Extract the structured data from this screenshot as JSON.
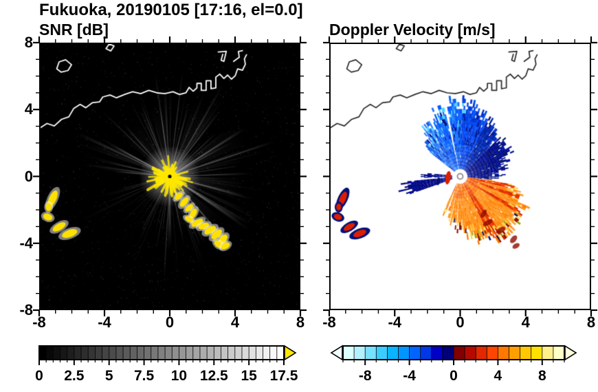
{
  "header": {
    "title": "Fukuoka, 20190105 [17:16, el=0.0]"
  },
  "panels": {
    "snr": {
      "title": "SNR [dB]"
    },
    "doppler": {
      "title": "Doppler Velocity [m/s]"
    }
  },
  "axes": {
    "x": [
      -8,
      -4,
      0,
      4,
      8
    ],
    "y": [
      8,
      4,
      0,
      -4,
      -8
    ]
  },
  "colorbar_labels": {
    "snr": [
      0,
      2.5,
      5,
      7.5,
      10,
      12.5,
      15,
      17.5
    ],
    "doppler": [
      -8,
      -4,
      0,
      4,
      8
    ]
  },
  "coastline": {
    "mainland": [
      [
        -8,
        2.95
      ],
      [
        -7.6,
        3.2
      ],
      [
        -7.15,
        3.05
      ],
      [
        -6.7,
        3.45
      ],
      [
        -6.25,
        3.6
      ],
      [
        -5.95,
        4.1
      ],
      [
        -5.55,
        4.35
      ],
      [
        -5.2,
        4.15
      ],
      [
        -4.8,
        4.45
      ],
      [
        -4.35,
        4.5
      ],
      [
        -4.15,
        4.8
      ],
      [
        -3.7,
        4.92
      ],
      [
        -3.3,
        4.75
      ],
      [
        -2.8,
        4.95
      ],
      [
        -2.3,
        5.12
      ],
      [
        -1.8,
        5.0
      ],
      [
        -1.3,
        5.2
      ],
      [
        -0.8,
        5.05
      ],
      [
        -0.3,
        5.0
      ],
      [
        0.2,
        5.12
      ],
      [
        0.6,
        4.95
      ],
      [
        1.0,
        5.05
      ],
      [
        1.2,
        5.38
      ],
      [
        1.45,
        5.15
      ],
      [
        1.68,
        5.35
      ],
      [
        1.68,
        5.62
      ],
      [
        1.95,
        5.62
      ],
      [
        1.95,
        5.2
      ],
      [
        2.25,
        5.2
      ],
      [
        2.25,
        5.78
      ],
      [
        2.55,
        5.78
      ],
      [
        2.55,
        5.3
      ],
      [
        2.85,
        5.35
      ],
      [
        2.85,
        6.0
      ],
      [
        3.1,
        6.18
      ],
      [
        3.35,
        5.92
      ],
      [
        3.58,
        6.12
      ],
      [
        3.82,
        5.88
      ],
      [
        4.05,
        6.08
      ],
      [
        4.2,
        6.5
      ],
      [
        4.5,
        6.42
      ],
      [
        4.68,
        6.78
      ],
      [
        4.62,
        7.1
      ],
      [
        4.75,
        7.35
      ]
    ],
    "islands": [
      {
        "closed": true,
        "pts": [
          [
            -7.0,
            6.5
          ],
          [
            -6.85,
            6.92
          ],
          [
            -6.45,
            7.05
          ],
          [
            -6.08,
            6.75
          ],
          [
            -6.3,
            6.4
          ],
          [
            -6.72,
            6.3
          ]
        ]
      },
      {
        "closed": true,
        "pts": [
          [
            -3.95,
            7.72
          ],
          [
            -3.75,
            8.0
          ],
          [
            -3.45,
            7.88
          ],
          [
            -3.65,
            7.58
          ]
        ]
      },
      {
        "closed": false,
        "pts": [
          [
            3.0,
            7.52
          ],
          [
            3.5,
            7.56
          ],
          [
            3.35,
            6.95
          ],
          [
            3.18,
            7.02
          ],
          [
            3.28,
            7.38
          ]
        ]
      },
      {
        "closed": false,
        "pts": [
          [
            3.95,
            6.95
          ],
          [
            4.3,
            7.2
          ],
          [
            4.25,
            7.55
          ],
          [
            4.5,
            7.6
          ]
        ]
      }
    ]
  },
  "chart_data": [
    {
      "type": "heatmap",
      "title": "SNR [dB]",
      "xlim": [
        -8,
        8
      ],
      "ylim": [
        -8,
        8
      ],
      "xticks": [
        -8,
        -4,
        0,
        4,
        8
      ],
      "yticks": [
        -8,
        -4,
        0,
        4,
        8
      ],
      "minor_tick_step": 1,
      "background": "#000000",
      "radar_origin": [
        0,
        0
      ],
      "colorbar": {
        "min": 0,
        "max": 17.5,
        "ticks": [
          0,
          2.5,
          5,
          7.5,
          10,
          12.5,
          15,
          17.5
        ],
        "minor_tick_step": 0.5,
        "colormap": "grayscale-black-to-white",
        "over_arrow_color": "#ffe600"
      },
      "description": "PPI radar SNR: white radial beams from radar at origin on black background, saturated yellow echo at center, yellow ground-clutter arc to the southeast and detached yellow patches to the west; white coastline of Hakata Bay on top",
      "clutter": {
        "southeast_arc": [
          [
            0.55,
            -1.2,
            0.3,
            0.16,
            140
          ],
          [
            0.9,
            -1.55,
            0.35,
            0.18,
            130
          ],
          [
            1.2,
            -1.9,
            0.3,
            0.16,
            140
          ],
          [
            1.45,
            -2.25,
            0.35,
            0.18,
            120
          ],
          [
            1.2,
            -2.6,
            0.3,
            0.15,
            30
          ],
          [
            1.7,
            -2.8,
            0.4,
            0.18,
            150
          ],
          [
            2.1,
            -3.0,
            0.35,
            0.18,
            160
          ],
          [
            2.5,
            -3.25,
            0.4,
            0.2,
            150
          ],
          [
            2.9,
            -3.5,
            0.4,
            0.2,
            140
          ],
          [
            3.3,
            -3.8,
            0.35,
            0.2,
            130
          ],
          [
            3.0,
            -4.1,
            0.3,
            0.18,
            40
          ],
          [
            3.45,
            -4.2,
            0.3,
            0.18,
            150
          ]
        ],
        "west_patches": [
          [
            -7.25,
            -1.35,
            0.55,
            0.22,
            115
          ],
          [
            -7.5,
            -1.85,
            0.25,
            0.18,
            90
          ],
          [
            -7.55,
            -2.45,
            0.3,
            0.2,
            20
          ],
          [
            -6.85,
            -3.05,
            0.45,
            0.2,
            150
          ],
          [
            -6.2,
            -3.45,
            0.5,
            0.22,
            160
          ]
        ]
      }
    },
    {
      "type": "heatmap",
      "title": "Doppler Velocity [m/s]",
      "xlim": [
        -8,
        8
      ],
      "ylim": [
        -8,
        8
      ],
      "xticks": [
        -8,
        -4,
        0,
        4,
        8
      ],
      "yticks": [
        -8,
        -4,
        0,
        4,
        8
      ],
      "minor_tick_step": 1,
      "background": "#ffffff",
      "radar_origin": [
        0,
        0
      ],
      "colorbar": {
        "min": -10,
        "max": 10,
        "ticks": [
          -8,
          -4,
          0,
          4,
          8
        ],
        "minor_tick_step": 1,
        "colormap": [
          "#dcffff",
          "#b4f0ff",
          "#78e1ff",
          "#3ccdff",
          "#0ab4ff",
          "#0096ff",
          "#0064ff",
          "#0037e6",
          "#0000c8",
          "#000078",
          "#820000",
          "#b40a00",
          "#e12800",
          "#ff4600",
          "#ff7800",
          "#ffa000",
          "#ffc800",
          "#ffe100",
          "#fff08c",
          "#ffffc8"
        ],
        "under_arrow_color": "#f0ffff",
        "over_arrow_color": "#ffffdc"
      },
      "description": "Doppler velocity: negative (blue/cyan) fan toward the north, dark navy mass to the east-northeast, positive (orange/red/yellow) fan to the southeast with dark red and navy fringe, thin navy wedges to the west, red specks to the west matching SNR clutter",
      "white_gaps_az": [
        -12,
        96.5,
        184,
        193,
        201
      ],
      "sectors": [
        {
          "name": "north-fan",
          "kind": "north",
          "az": [
            -52,
            46
          ],
          "r_in": 0.45,
          "r_profile": [
            [
              -52,
              2.7
            ],
            [
              -38,
              3.4
            ],
            [
              -20,
              4.1
            ],
            [
              -5,
              4.5
            ],
            [
              8,
              4.5
            ],
            [
              22,
              4.1
            ],
            [
              35,
              3.6
            ],
            [
              46,
              3.2
            ]
          ]
        },
        {
          "name": "east-dark-mass",
          "kind": "eastdark",
          "az": [
            46,
            96
          ],
          "r_in": 0.45,
          "r_profile": [
            [
              46,
              3.2
            ],
            [
              58,
              3.4
            ],
            [
              70,
              3.2
            ],
            [
              82,
              2.7
            ],
            [
              96,
              2.1
            ]
          ]
        },
        {
          "name": "southeast-fan",
          "kind": "southeast",
          "az": [
            96,
            206
          ],
          "r_in": 0.45,
          "r_profile": [
            [
              96,
              2.6
            ],
            [
              103,
              3.8
            ],
            [
              112,
              4.2
            ],
            [
              125,
              4.4
            ],
            [
              140,
              4.5
            ],
            [
              152,
              4.35
            ],
            [
              166,
              4.0
            ],
            [
              180,
              3.2
            ],
            [
              194,
              2.7
            ],
            [
              206,
              2.2
            ]
          ]
        },
        {
          "name": "west-wedge",
          "kind": "westdark",
          "az": [
            251,
            265
          ],
          "r_in": 0.5,
          "r_profile": [
            [
              251,
              3.3
            ],
            [
              258,
              3.6
            ],
            [
              265,
              3.2
            ]
          ]
        },
        {
          "name": "wsw-wedge",
          "kind": "westdark",
          "az": [
            268,
            275
          ],
          "r_in": 0.5,
          "r_profile": [
            [
              268,
              2.4
            ],
            [
              275,
              2.2
            ]
          ]
        }
      ]
    }
  ]
}
